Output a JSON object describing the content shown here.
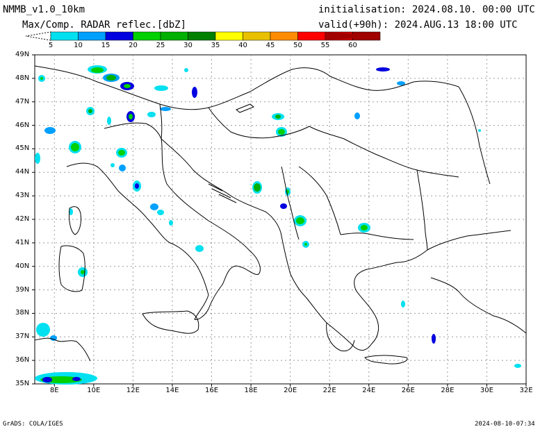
{
  "header": {
    "model": "NMMB_v1.0_10km",
    "product": "Max/Comp. RADAR reflec.[dbZ]",
    "init": "initialisation: 2024.08.10. 00:00 UTC",
    "valid": "valid(+90h): 2024.AUG.13 18:00 UTC"
  },
  "legend": {
    "labels": [
      "5",
      "10",
      "15",
      "20",
      "25",
      "30",
      "35",
      "40",
      "45",
      "50",
      "55",
      "60"
    ],
    "colors": [
      "#00e0f0",
      "#00a0ff",
      "#0000e0",
      "#00d000",
      "#00b000",
      "#008000",
      "#ffff00",
      "#e8c000",
      "#ff8c00",
      "#ff0000",
      "#c80000",
      "#a00000"
    ]
  },
  "axes": {
    "lat_labels": [
      "49N",
      "48N",
      "47N",
      "46N",
      "45N",
      "44N",
      "43N",
      "42N",
      "41N",
      "40N",
      "39N",
      "38N",
      "37N",
      "36N",
      "35N"
    ],
    "lon_labels": [
      "8E",
      "10E",
      "12E",
      "14E",
      "16E",
      "18E",
      "20E",
      "22E",
      "24E",
      "26E",
      "28E",
      "30E",
      "32E"
    ],
    "lat_range": [
      35,
      49
    ],
    "lon_range": [
      7,
      32
    ]
  },
  "footer": {
    "left": "GrADS: COLA/IGES",
    "right": "2024-08-10-07:34"
  }
}
